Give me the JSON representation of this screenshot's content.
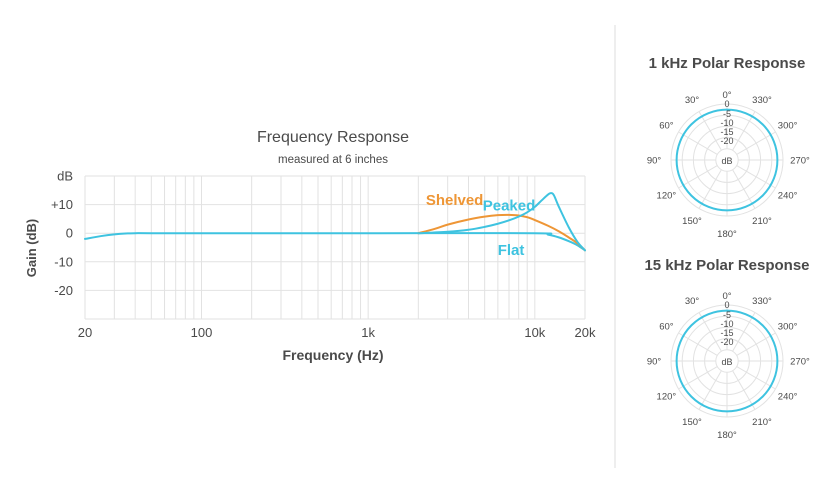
{
  "colors": {
    "peaked": "#3ec3e0",
    "shelved": "#ee9636",
    "flat": "#3ec3e0",
    "polar": "#3ec3e0",
    "grid": "#e2e2e2",
    "text": "#4a4a4a",
    "divider": "#dddddd"
  },
  "chart_data": [
    {
      "type": "line",
      "title": "Frequency Response",
      "subtitle": "measured at 6 inches",
      "xlabel": "Frequency (Hz)",
      "ylabel": "Gain (dB)",
      "x_scale": "log",
      "xlim": [
        20,
        20000
      ],
      "ylim": [
        -30,
        20
      ],
      "grid": true,
      "x_ticks": [
        {
          "value": 20,
          "label": "20"
        },
        {
          "value": 100,
          "label": "100"
        },
        {
          "value": 1000,
          "label": "1k"
        },
        {
          "value": 10000,
          "label": "10k"
        },
        {
          "value": 20000,
          "label": "20k"
        }
      ],
      "y_ticks": [
        {
          "value": 20,
          "label": "dB"
        },
        {
          "value": 10,
          "label": "+10"
        },
        {
          "value": 0,
          "label": "0"
        },
        {
          "value": -10,
          "label": "-10"
        },
        {
          "value": -20,
          "label": "-20"
        }
      ],
      "series": [
        {
          "name": "Flat",
          "color_key": "flat",
          "x": [
            20,
            25,
            30,
            35,
            40,
            50,
            100,
            1000,
            10000,
            12000,
            14000,
            16000,
            18000,
            20000
          ],
          "y": [
            -2,
            -1,
            -0.4,
            -0.1,
            0,
            0,
            0,
            0,
            0,
            -0.5,
            -1.5,
            -2.8,
            -4.2,
            -6
          ]
        },
        {
          "name": "Shelved",
          "x": [
            2000,
            2500,
            3000,
            4000,
            5000,
            6000,
            7000,
            8000,
            9000,
            10000,
            12000,
            14000,
            16000,
            18000,
            20000
          ],
          "y": [
            0,
            1.5,
            3,
            4.8,
            5.8,
            6.3,
            6.4,
            6.2,
            5.6,
            4.6,
            2.6,
            0.6,
            -1.5,
            -3.5,
            -6
          ]
        },
        {
          "name": "Peaked",
          "x": [
            2000,
            3000,
            4000,
            5000,
            6000,
            7000,
            8000,
            9000,
            10000,
            11000,
            12000,
            12500,
            13000,
            14000,
            16000,
            18000,
            20000
          ],
          "y": [
            0,
            0.5,
            1.2,
            2.2,
            3.3,
            4.5,
            5.8,
            7.3,
            9.2,
            11.5,
            13.5,
            14,
            13.3,
            9,
            2,
            -3,
            -6
          ]
        }
      ]
    },
    {
      "type": "polar",
      "title": "1 kHz Polar Response",
      "angle_labels": [
        "0°",
        "30°",
        "60°",
        "90°",
        "120°",
        "150°",
        "180°",
        "210°",
        "240°",
        "270°",
        "300°",
        "330°"
      ],
      "ring_labels": [
        "0",
        "-5",
        "-10",
        "-15",
        "-20",
        "dB"
      ],
      "rlim": [
        -25,
        0
      ],
      "response_db": -2.5
    },
    {
      "type": "polar",
      "title": "15 kHz Polar Response",
      "angle_labels": [
        "0°",
        "30°",
        "60°",
        "90°",
        "120°",
        "150°",
        "180°",
        "210°",
        "240°",
        "270°",
        "300°",
        "330°"
      ],
      "ring_labels": [
        "0",
        "-5",
        "-10",
        "-15",
        "-20",
        "dB"
      ],
      "rlim": [
        -25,
        0
      ],
      "response_db": -2.5
    }
  ]
}
